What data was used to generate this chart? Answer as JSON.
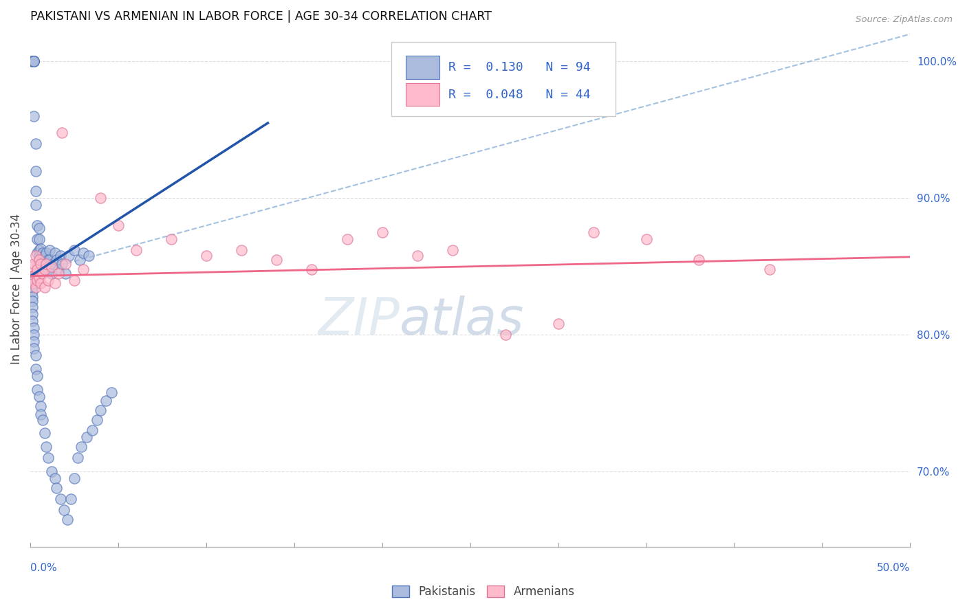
{
  "title": "PAKISTANI VS ARMENIAN IN LABOR FORCE | AGE 30-34 CORRELATION CHART",
  "source": "Source: ZipAtlas.com",
  "ylabel": "In Labor Force | Age 30-34",
  "right_ytick_vals": [
    0.7,
    0.8,
    0.9,
    1.0
  ],
  "right_ytick_labels": [
    "70.0%",
    "80.0%",
    "90.0%",
    "100.0%"
  ],
  "xmin": 0.0,
  "xmax": 0.5,
  "ymin": 0.645,
  "ymax": 1.022,
  "blue_color": "#AABBDD",
  "blue_edge": "#5577BB",
  "pink_color": "#FFBBCC",
  "pink_edge": "#DD7799",
  "blue_line_color": "#2255AA",
  "pink_line_color": "#EE6688",
  "dashed_line_color": "#99BBDD",
  "grid_color": "#DDDDDD",
  "text_color": "#3366CC",
  "legend_R_blue": "0.130",
  "legend_N_blue": "94",
  "legend_R_pink": "0.048",
  "legend_N_pink": "44",
  "pak_x": [
    0.001,
    0.001,
    0.001,
    0.001,
    0.001,
    0.002,
    0.002,
    0.002,
    0.002,
    0.002,
    0.002,
    0.002,
    0.002,
    0.003,
    0.003,
    0.003,
    0.003,
    0.004,
    0.004,
    0.004,
    0.004,
    0.005,
    0.005,
    0.005,
    0.005,
    0.005,
    0.006,
    0.006,
    0.006,
    0.007,
    0.007,
    0.007,
    0.008,
    0.008,
    0.009,
    0.009,
    0.01,
    0.01,
    0.011,
    0.011,
    0.012,
    0.013,
    0.014,
    0.015,
    0.016,
    0.017,
    0.018,
    0.02,
    0.022,
    0.025,
    0.028,
    0.03,
    0.033,
    0.001,
    0.001,
    0.001,
    0.001,
    0.001,
    0.001,
    0.001,
    0.001,
    0.001,
    0.001,
    0.002,
    0.002,
    0.002,
    0.002,
    0.003,
    0.003,
    0.004,
    0.004,
    0.005,
    0.006,
    0.006,
    0.007,
    0.008,
    0.009,
    0.01,
    0.012,
    0.014,
    0.015,
    0.017,
    0.019,
    0.021,
    0.023,
    0.025,
    0.027,
    0.029,
    0.032,
    0.035,
    0.038,
    0.04,
    0.043,
    0.046
  ],
  "pak_y": [
    1.0,
    1.0,
    1.0,
    1.0,
    1.0,
    1.0,
    1.0,
    1.0,
    1.0,
    1.0,
    1.0,
    1.0,
    0.96,
    0.94,
    0.92,
    0.905,
    0.895,
    0.88,
    0.87,
    0.86,
    0.85,
    0.858,
    0.862,
    0.87,
    0.878,
    0.855,
    0.863,
    0.852,
    0.845,
    0.86,
    0.855,
    0.85,
    0.858,
    0.848,
    0.852,
    0.86,
    0.855,
    0.848,
    0.862,
    0.855,
    0.845,
    0.852,
    0.86,
    0.855,
    0.848,
    0.858,
    0.852,
    0.845,
    0.858,
    0.862,
    0.855,
    0.86,
    0.858,
    0.843,
    0.84,
    0.838,
    0.835,
    0.832,
    0.828,
    0.825,
    0.82,
    0.815,
    0.81,
    0.805,
    0.8,
    0.795,
    0.79,
    0.785,
    0.775,
    0.77,
    0.76,
    0.755,
    0.748,
    0.742,
    0.738,
    0.728,
    0.718,
    0.71,
    0.7,
    0.695,
    0.688,
    0.68,
    0.672,
    0.665,
    0.68,
    0.695,
    0.71,
    0.718,
    0.725,
    0.73,
    0.738,
    0.745,
    0.752,
    0.758
  ],
  "arm_x": [
    0.001,
    0.001,
    0.002,
    0.002,
    0.002,
    0.003,
    0.003,
    0.003,
    0.004,
    0.004,
    0.005,
    0.005,
    0.006,
    0.006,
    0.007,
    0.008,
    0.008,
    0.009,
    0.01,
    0.012,
    0.014,
    0.016,
    0.018,
    0.02,
    0.025,
    0.03,
    0.04,
    0.05,
    0.06,
    0.08,
    0.1,
    0.12,
    0.14,
    0.16,
    0.18,
    0.2,
    0.22,
    0.24,
    0.27,
    0.3,
    0.32,
    0.35,
    0.38,
    0.42
  ],
  "arm_y": [
    0.843,
    0.85,
    0.84,
    0.852,
    0.838,
    0.845,
    0.858,
    0.835,
    0.848,
    0.84,
    0.855,
    0.842,
    0.838,
    0.852,
    0.845,
    0.848,
    0.835,
    0.852,
    0.84,
    0.85,
    0.838,
    0.845,
    0.948,
    0.852,
    0.84,
    0.848,
    0.9,
    0.88,
    0.862,
    0.87,
    0.858,
    0.862,
    0.855,
    0.848,
    0.87,
    0.875,
    0.858,
    0.862,
    0.8,
    0.808,
    0.875,
    0.87,
    0.855,
    0.848
  ]
}
